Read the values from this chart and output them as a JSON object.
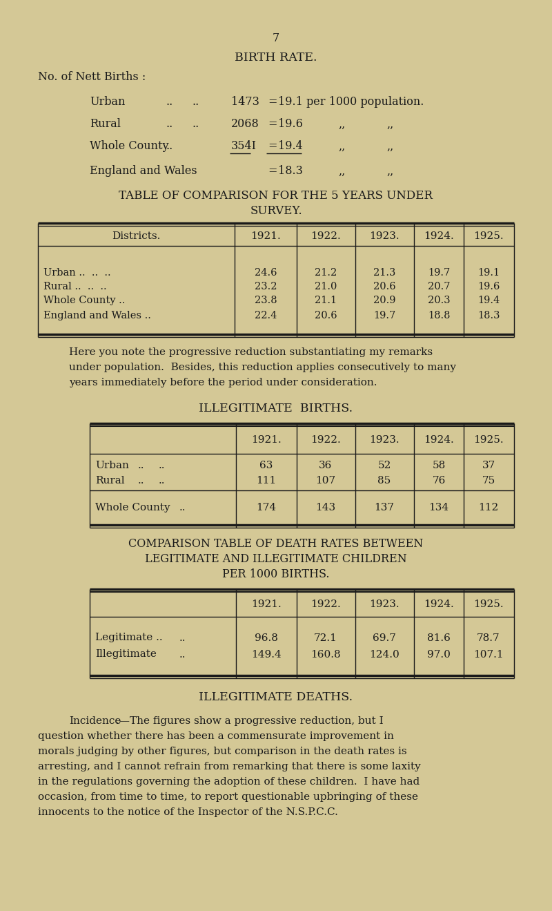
{
  "bg_color": "#d4c896",
  "text_color": "#1a1a1a",
  "page_number": "7",
  "section_title": "BIRTH RATE.",
  "nett_births_label": "No. of Nett Births :",
  "birth_rate_rows": [
    {
      "label": "Urban",
      "d1": "..",
      "d2": "..",
      "number": "1473",
      "rate": "19.1",
      "suffix": "per 1000 population."
    },
    {
      "label": "Rural",
      "d1": "..",
      "d2": "..",
      "number": "2068",
      "rate": "19.6",
      "suffix": ",,          ,,"
    },
    {
      "label": "Whole County",
      "d1": "..",
      "d2": "",
      "number": "354I",
      "rate": "19.4",
      "suffix": ",,          ,,"
    },
    {
      "label": "England and Wales",
      "d1": "",
      "d2": "",
      "number": "",
      "rate": "18.3",
      "suffix": ",,          ,,"
    }
  ],
  "table1_title_line1": "TABLE OF COMPARISON FOR THE 5 YEARS UNDER",
  "table1_title_line2": "SURVEY.",
  "table1_headers": [
    "Districts.",
    "1921.",
    "1922.",
    "1923.",
    "1924.",
    "1925."
  ],
  "table1_rows": [
    [
      "Urban ..   ..   ..",
      "24.6",
      "21.2",
      "21.3",
      "19.7",
      "19.1"
    ],
    [
      "Rural ..   ..   ..",
      "23.2",
      "21.0",
      "20.6",
      "20.7",
      "19.6"
    ],
    [
      "Whole County   ..",
      "23.8",
      "21.1",
      "20.9",
      "20.3",
      "19.4"
    ],
    [
      "England and Wales ..",
      "22.4",
      "20.6",
      "19.7",
      "18.8",
      "18.3"
    ]
  ],
  "para1_lines": [
    "Here you note the progressive reduction substantiating my remarks",
    "under population.  Besides, this reduction applies consecutively to many",
    "years immediately before the period under consideration."
  ],
  "table2_title": "ILLEGITIMATE  BIRTHS.",
  "table2_headers": [
    "1921.",
    "1922.",
    "1923.",
    "1924.",
    "1925."
  ],
  "table2_urban": [
    "63",
    "36",
    "52",
    "58",
    "37"
  ],
  "table2_rural": [
    "111",
    "107",
    "85",
    "76",
    "75"
  ],
  "table2_whole": [
    "174",
    "143",
    "137",
    "134",
    "112"
  ],
  "table3_title_lines": [
    "COMPARISON TABLE OF DEATH RATES BETWEEN",
    "LEGITIMATE AND ILLEGITIMATE CHILDREN",
    "PER 1000 BIRTHS."
  ],
  "table3_headers": [
    "1921.",
    "1922.",
    "1923.",
    "1924.",
    "1925."
  ],
  "table3_legit": [
    "96.8",
    "72.1",
    "69.7",
    "81.6",
    "78.7"
  ],
  "table3_illegit": [
    "149.4",
    "160.8",
    "124.0",
    "97.0",
    "107.1"
  ],
  "section2_title": "ILLEGITIMATE DEATHS.",
  "para2_first_word": "Incidence",
  "para2_lines": [
    ".—The figures show a progressive reduction, but I",
    "question whether there has been a commensurate improvement in",
    "morals judging by other figures, but comparison in the death rates is",
    "arresting, and I cannot refrain from remarking that there is some laxity",
    "in the regulations governing the adoption of these children.  I have had",
    "occasion, from time to time, to report questionable upbringing of these",
    "innocents to the notice of the Inspector of the N.S.P.C.C."
  ]
}
